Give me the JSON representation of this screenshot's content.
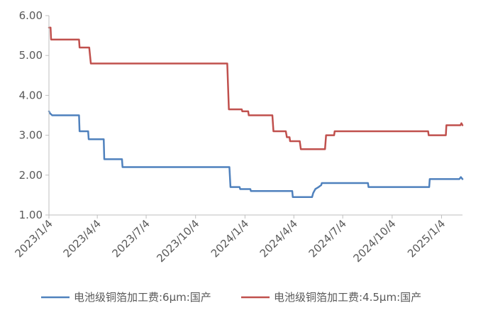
{
  "chart_data": {
    "type": "line",
    "title": "",
    "xlabel": "",
    "ylabel": "",
    "ylim": [
      1.0,
      6.0
    ],
    "y_ticks": [
      "1.00",
      "2.00",
      "3.00",
      "4.00",
      "5.00",
      "6.00"
    ],
    "x_ticks": [
      "2023/1/4",
      "2023/4/4",
      "2023/7/4",
      "2023/10/4",
      "2024/1/4",
      "2024/4/4",
      "2024/7/4",
      "2024/10/4",
      "2025/1/4"
    ],
    "xlim": [
      "2023-01-04",
      "2025-02-12"
    ],
    "grid": false,
    "legend_position": "bottom",
    "series": [
      {
        "name": "电池级铜箔加工费:6μm:国产",
        "color": "#4F81BD",
        "points": [
          [
            "2023-01-04",
            3.6
          ],
          [
            "2023-01-06",
            3.55
          ],
          [
            "2023-01-10",
            3.5
          ],
          [
            "2023-03-01",
            3.5
          ],
          [
            "2023-03-02",
            3.1
          ],
          [
            "2023-03-18",
            3.1
          ],
          [
            "2023-03-19",
            2.9
          ],
          [
            "2023-04-16",
            2.9
          ],
          [
            "2023-04-17",
            2.4
          ],
          [
            "2023-05-20",
            2.4
          ],
          [
            "2023-05-21",
            2.2
          ],
          [
            "2023-12-06",
            2.2
          ],
          [
            "2023-12-08",
            1.7
          ],
          [
            "2023-12-25",
            1.7
          ],
          [
            "2023-12-26",
            1.65
          ],
          [
            "2024-01-14",
            1.65
          ],
          [
            "2024-01-15",
            1.6
          ],
          [
            "2024-04-01",
            1.6
          ],
          [
            "2024-04-02",
            1.45
          ],
          [
            "2024-05-08",
            1.45
          ],
          [
            "2024-05-10",
            1.55
          ],
          [
            "2024-05-14",
            1.65
          ],
          [
            "2024-05-20",
            1.7
          ],
          [
            "2024-05-25",
            1.75
          ],
          [
            "2024-05-26",
            1.8
          ],
          [
            "2024-08-20",
            1.8
          ],
          [
            "2024-08-21",
            1.7
          ],
          [
            "2024-12-12",
            1.7
          ],
          [
            "2024-12-13",
            1.9
          ],
          [
            "2025-02-06",
            1.9
          ],
          [
            "2025-02-09",
            1.95
          ],
          [
            "2025-02-12",
            1.9
          ]
        ]
      },
      {
        "name": "电池级铜箔加工费:4.5μm:国产",
        "color": "#C0504D",
        "points": [
          [
            "2023-01-04",
            5.7
          ],
          [
            "2023-01-07",
            5.7
          ],
          [
            "2023-01-08",
            5.4
          ],
          [
            "2023-03-01",
            5.4
          ],
          [
            "2023-03-02",
            5.2
          ],
          [
            "2023-03-20",
            5.2
          ],
          [
            "2023-03-23",
            4.8
          ],
          [
            "2023-12-02",
            4.8
          ],
          [
            "2023-12-05",
            3.65
          ],
          [
            "2023-12-29",
            3.65
          ],
          [
            "2023-12-30",
            3.6
          ],
          [
            "2024-01-10",
            3.6
          ],
          [
            "2024-01-11",
            3.5
          ],
          [
            "2024-02-24",
            3.5
          ],
          [
            "2024-02-26",
            3.1
          ],
          [
            "2024-03-20",
            3.1
          ],
          [
            "2024-03-22",
            2.95
          ],
          [
            "2024-03-27",
            2.95
          ],
          [
            "2024-03-28",
            2.85
          ],
          [
            "2024-04-15",
            2.85
          ],
          [
            "2024-04-17",
            2.65
          ],
          [
            "2024-06-01",
            2.65
          ],
          [
            "2024-06-03",
            3.0
          ],
          [
            "2024-06-18",
            3.0
          ],
          [
            "2024-06-19",
            3.1
          ],
          [
            "2024-12-10",
            3.1
          ],
          [
            "2024-12-11",
            3.0
          ],
          [
            "2025-01-12",
            3.0
          ],
          [
            "2025-01-13",
            3.25
          ],
          [
            "2025-02-08",
            3.25
          ],
          [
            "2025-02-10",
            3.3
          ],
          [
            "2025-02-12",
            3.25
          ]
        ]
      }
    ]
  }
}
